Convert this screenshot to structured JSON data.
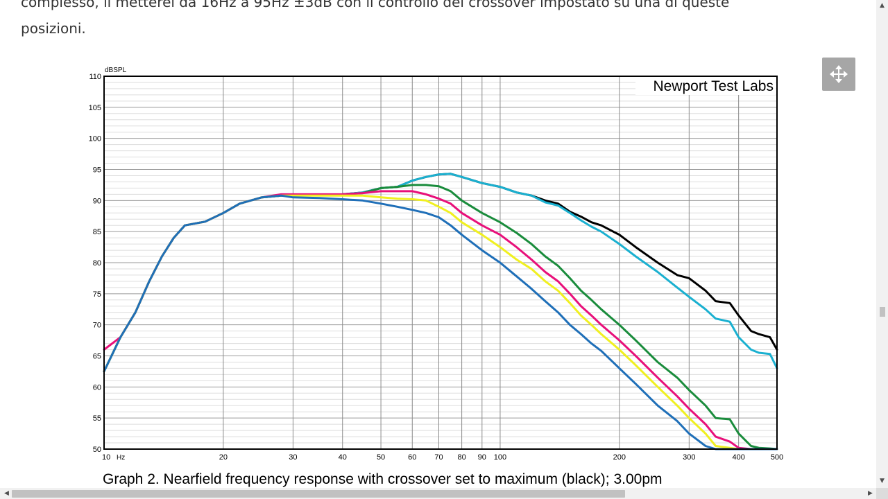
{
  "article": {
    "line1": "complesso, li metterei da 16Hz a 95Hz ±3dB con il controllo del crossover impostato su una di queste",
    "line2": "posizioni."
  },
  "chart_data": {
    "type": "line",
    "title": "Newport Test Labs",
    "caption": "Graph 2. Nearfield frequency response with crossover set to maximum (black); 3.00pm",
    "ylabel": "dBSPL",
    "xlabel": "Hz",
    "x_scale": "log",
    "xlim": [
      10,
      500
    ],
    "ylim": [
      50,
      110
    ],
    "grid": true,
    "x_ticks": [
      {
        "v": 10,
        "label": "10"
      },
      {
        "v": 20,
        "label": "20"
      },
      {
        "v": 30,
        "label": "30"
      },
      {
        "v": 40,
        "label": "40"
      },
      {
        "v": 50,
        "label": "50"
      },
      {
        "v": 60,
        "label": "60"
      },
      {
        "v": 70,
        "label": "70"
      },
      {
        "v": 80,
        "label": "80"
      },
      {
        "v": 90,
        "label": "90"
      },
      {
        "v": 100,
        "label": "100"
      },
      {
        "v": 200,
        "label": "200"
      },
      {
        "v": 300,
        "label": "300"
      },
      {
        "v": 400,
        "label": "400"
      },
      {
        "v": 500,
        "label": "500"
      }
    ],
    "y_ticks": [
      50,
      55,
      60,
      65,
      70,
      75,
      80,
      85,
      90,
      95,
      100,
      105,
      110
    ],
    "series": [
      {
        "color": "#000000",
        "x": [
          10,
          11,
          12,
          13,
          14,
          15,
          16,
          18,
          20,
          22,
          25,
          28,
          30,
          35,
          40,
          45,
          50,
          55,
          60,
          65,
          70,
          75,
          80,
          90,
          100,
          110,
          120,
          130,
          140,
          150,
          160,
          170,
          180,
          200,
          220,
          250,
          280,
          300,
          330,
          350,
          380,
          400,
          430,
          450,
          480,
          500
        ],
        "y": [
          62.5,
          68,
          72,
          77,
          81,
          84,
          86,
          86.6,
          88,
          89.5,
          90.5,
          90.8,
          90.8,
          90.9,
          91,
          91.3,
          92,
          92.2,
          93.2,
          93.8,
          94.2,
          94.3,
          93.8,
          92.8,
          92.2,
          91.3,
          90.8,
          90,
          89.5,
          88.2,
          87.4,
          86.5,
          86,
          84.5,
          82.5,
          80,
          78,
          77.5,
          75.5,
          73.8,
          73.5,
          71.5,
          69,
          68.5,
          68,
          66
        ]
      },
      {
        "color": "#1ab0d0",
        "x": [
          10,
          11,
          12,
          13,
          14,
          15,
          16,
          18,
          20,
          22,
          25,
          28,
          30,
          35,
          40,
          45,
          50,
          55,
          60,
          65,
          70,
          75,
          80,
          90,
          100,
          110,
          120,
          130,
          140,
          150,
          160,
          170,
          180,
          200,
          220,
          250,
          280,
          300,
          330,
          350,
          380,
          400,
          430,
          450,
          480,
          500
        ],
        "y": [
          62.5,
          68,
          72,
          77,
          81,
          84,
          86,
          86.6,
          88,
          89.5,
          90.5,
          90.8,
          90.8,
          90.9,
          91,
          91.3,
          92,
          92.2,
          93.2,
          93.8,
          94.2,
          94.3,
          93.8,
          92.8,
          92.2,
          91.3,
          90.8,
          89.7,
          89.2,
          88,
          86.8,
          85.8,
          85,
          83,
          81,
          78.5,
          76,
          74.5,
          72.5,
          71,
          70.5,
          68,
          66,
          65.5,
          65.3,
          63
        ]
      },
      {
        "color": "#1a8c3c",
        "x": [
          10,
          11,
          12,
          13,
          14,
          15,
          16,
          18,
          20,
          22,
          25,
          28,
          30,
          35,
          40,
          45,
          50,
          55,
          60,
          65,
          70,
          75,
          80,
          90,
          100,
          110,
          120,
          130,
          140,
          150,
          160,
          170,
          180,
          200,
          220,
          250,
          280,
          300,
          330,
          350,
          380,
          400,
          430,
          450,
          480,
          500
        ],
        "y": [
          62.5,
          68,
          72,
          77,
          81,
          84,
          86,
          86.6,
          88,
          89.5,
          90.5,
          90.8,
          90.8,
          90.9,
          91,
          91.2,
          92,
          92.2,
          92.5,
          92.5,
          92.3,
          91.5,
          90,
          88,
          86.5,
          84.8,
          83,
          81,
          79.5,
          77.5,
          75.5,
          74,
          72.5,
          70,
          67.5,
          64,
          61.5,
          59.5,
          57,
          55,
          54.8,
          52.5,
          50.5,
          50.2,
          50.1,
          50
        ]
      },
      {
        "color": "#e8107a",
        "x": [
          10,
          11,
          12,
          13,
          14,
          15,
          16,
          18,
          20,
          22,
          25,
          28,
          30,
          35,
          40,
          45,
          50,
          55,
          60,
          65,
          70,
          75,
          80,
          90,
          100,
          110,
          120,
          130,
          140,
          150,
          160,
          170,
          180,
          200,
          220,
          250,
          280,
          300,
          330,
          350,
          380,
          400,
          430,
          450,
          480,
          500
        ],
        "y": [
          66,
          68,
          72,
          77,
          81,
          84,
          86,
          86.6,
          88,
          89.5,
          90.5,
          91,
          91,
          91,
          91,
          91.2,
          91.5,
          91.5,
          91.5,
          91,
          90.3,
          89.5,
          88,
          86,
          84.5,
          82.5,
          80.5,
          78.5,
          77,
          75,
          73,
          71.5,
          70,
          67.5,
          65,
          61.5,
          58.5,
          56.5,
          54,
          52,
          51.2,
          50.2,
          50,
          50,
          50,
          50
        ]
      },
      {
        "color": "#f0f020",
        "x": [
          10,
          11,
          12,
          13,
          14,
          15,
          16,
          18,
          20,
          22,
          25,
          28,
          30,
          35,
          40,
          45,
          50,
          55,
          60,
          65,
          70,
          75,
          80,
          90,
          100,
          110,
          120,
          130,
          140,
          150,
          160,
          170,
          180,
          200,
          220,
          250,
          280,
          300,
          330,
          350,
          380,
          400,
          430,
          450,
          480,
          500
        ],
        "y": [
          62.5,
          68,
          72,
          77,
          81,
          84,
          86,
          86.6,
          88,
          89.5,
          90.5,
          90.8,
          90.8,
          90.8,
          90.8,
          90.8,
          90.5,
          90.3,
          90.2,
          90,
          89,
          88,
          86.5,
          84.5,
          82.5,
          80.5,
          79,
          77,
          75.5,
          73.5,
          71.5,
          70,
          68.5,
          66,
          63.5,
          60,
          57,
          55,
          52.5,
          50.5,
          50.2,
          50,
          50,
          50,
          50,
          50
        ]
      },
      {
        "color": "#1f6fb8",
        "x": [
          10,
          11,
          12,
          13,
          14,
          15,
          16,
          18,
          20,
          22,
          25,
          28,
          30,
          35,
          40,
          45,
          50,
          55,
          60,
          65,
          70,
          75,
          80,
          90,
          100,
          110,
          120,
          130,
          140,
          150,
          160,
          170,
          180,
          200,
          220,
          250,
          280,
          300,
          330,
          350,
          380,
          400,
          430,
          450,
          480,
          500
        ],
        "y": [
          62.5,
          68,
          72,
          77,
          81,
          84,
          86,
          86.6,
          88,
          89.5,
          90.5,
          90.8,
          90.5,
          90.4,
          90.2,
          90,
          89.5,
          89,
          88.5,
          88,
          87.3,
          86,
          84.5,
          82,
          80,
          77.8,
          75.8,
          73.8,
          72,
          70,
          68.5,
          67,
          65.8,
          63,
          60.5,
          57,
          54.5,
          52.5,
          50.5,
          50,
          50,
          50,
          50,
          50,
          50,
          50
        ]
      }
    ]
  }
}
